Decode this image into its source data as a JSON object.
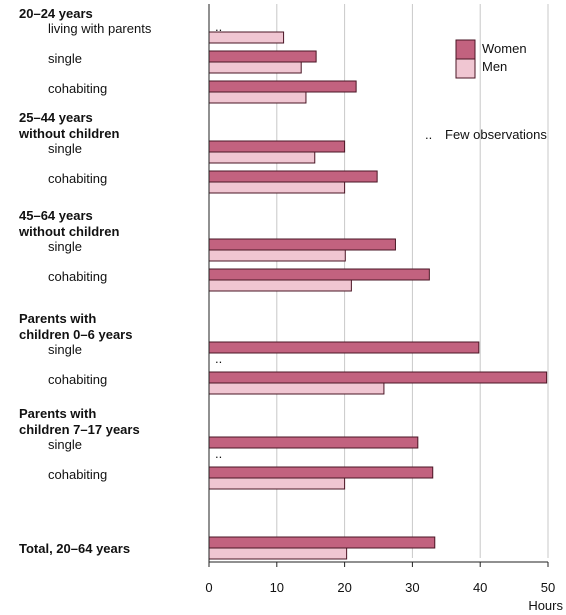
{
  "chart_data": {
    "type": "bar",
    "orientation": "horizontal",
    "xlabel": "Hours",
    "xlim": [
      0,
      50
    ],
    "xticks": [
      0,
      10,
      20,
      30,
      40,
      50
    ],
    "grid": true,
    "legend_position": "top-right",
    "series": [
      {
        "name": "Women",
        "color": "#c2627f"
      },
      {
        "name": "Men",
        "color": "#f0c6d2"
      }
    ],
    "missing_marker": "..",
    "note": "Few observations",
    "groups": [
      {
        "label": [
          "20–24 years"
        ],
        "rows": [
          {
            "label": "living with parents",
            "women": null,
            "men": 11
          },
          {
            "label": "single",
            "women": 15.8,
            "men": 13.6
          },
          {
            "label": "cohabiting",
            "women": 21.7,
            "men": 14.3
          }
        ]
      },
      {
        "label": [
          "25–44 years",
          "without children"
        ],
        "rows": [
          {
            "label": "single",
            "women": 20,
            "men": 15.6
          },
          {
            "label": "cohabiting",
            "women": 24.8,
            "men": 20
          }
        ]
      },
      {
        "label": [
          "45–64 years",
          "without children"
        ],
        "rows": [
          {
            "label": "single",
            "women": 27.5,
            "men": 20.1
          },
          {
            "label": "cohabiting",
            "women": 32.5,
            "men": 21
          }
        ]
      },
      {
        "label": [
          "Parents with",
          "children 0–6 years"
        ],
        "rows": [
          {
            "label": "single",
            "women": 39.8,
            "men": null
          },
          {
            "label": "cohabiting",
            "women": 49.8,
            "men": 25.8
          }
        ]
      },
      {
        "label": [
          "Parents with",
          "children 7–17 years"
        ],
        "rows": [
          {
            "label": "single",
            "women": 30.8,
            "men": null
          },
          {
            "label": "cohabiting",
            "women": 33,
            "men": 20
          }
        ]
      },
      {
        "label": [
          "Total, 20–64 years"
        ],
        "rows": [
          {
            "label": "",
            "women": 33.3,
            "men": 20.3
          }
        ]
      }
    ]
  }
}
